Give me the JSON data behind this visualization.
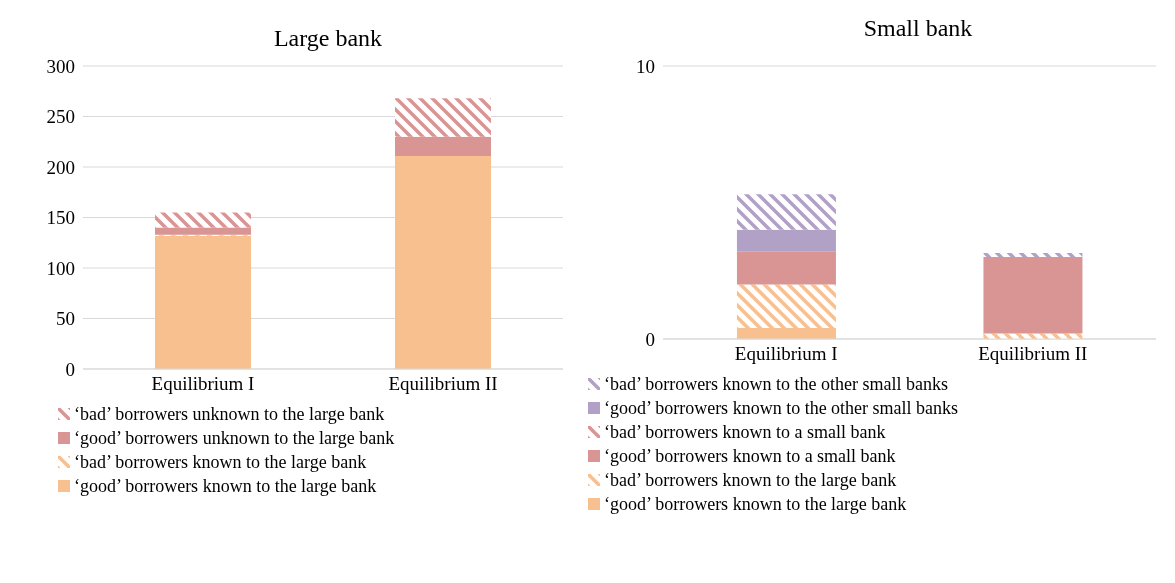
{
  "chart_data": [
    {
      "type": "bar",
      "title": "Large bank",
      "categories": [
        "Equilibrium I",
        "Equilibrium II"
      ],
      "stacked": true,
      "ylim": [
        0,
        300
      ],
      "yticks": [
        0,
        50,
        100,
        150,
        200,
        250,
        300
      ],
      "grid": "y",
      "legend": "bottom",
      "series": [
        {
          "name": "‘good’ borrowers known to the large bank",
          "color": "#f8bf8f",
          "values": [
            132,
            211
          ]
        },
        {
          "name": "‘bad’ borrowers known to the large bank",
          "color": "#f8bf8f",
          "values": [
            1,
            0
          ]
        },
        {
          "name": "‘good’ borrowers unknown to the large bank",
          "color": "#d99594",
          "values": [
            7,
            19
          ]
        },
        {
          "name": "‘bad’ borrowers unknown to the large bank",
          "color": "#d99594",
          "values": [
            15,
            38
          ]
        }
      ]
    },
    {
      "type": "bar",
      "title": "Small bank",
      "categories": [
        "Equilibrium I",
        "Equilibrium II"
      ],
      "stacked": true,
      "ylim": [
        0,
        10
      ],
      "yticks": [
        0,
        10
      ],
      "grid": "y",
      "legend": "bottom",
      "series": [
        {
          "name": "‘good’ borrowers known to the large bank",
          "color": "#f8bf8f",
          "values": [
            0.4,
            0
          ]
        },
        {
          "name": "‘bad’ borrowers known to the large bank",
          "color": "#f8bf8f",
          "values": [
            1.6,
            0.2
          ]
        },
        {
          "name": "‘good’ borrowers known to a small bank",
          "color": "#d99594",
          "values": [
            1.2,
            2.8
          ]
        },
        {
          "name": "‘bad’ borrowers known to a small bank",
          "color": "#d99594",
          "values": [
            0,
            0
          ]
        },
        {
          "name": "‘good’ borrowers known to the other small banks",
          "color": "#b2a1c7",
          "values": [
            0.8,
            0
          ]
        },
        {
          "name": "‘bad’ borrowers known to the other small banks",
          "color": "#b2a1c7",
          "values": [
            1.3,
            0.15
          ]
        }
      ]
    }
  ]
}
